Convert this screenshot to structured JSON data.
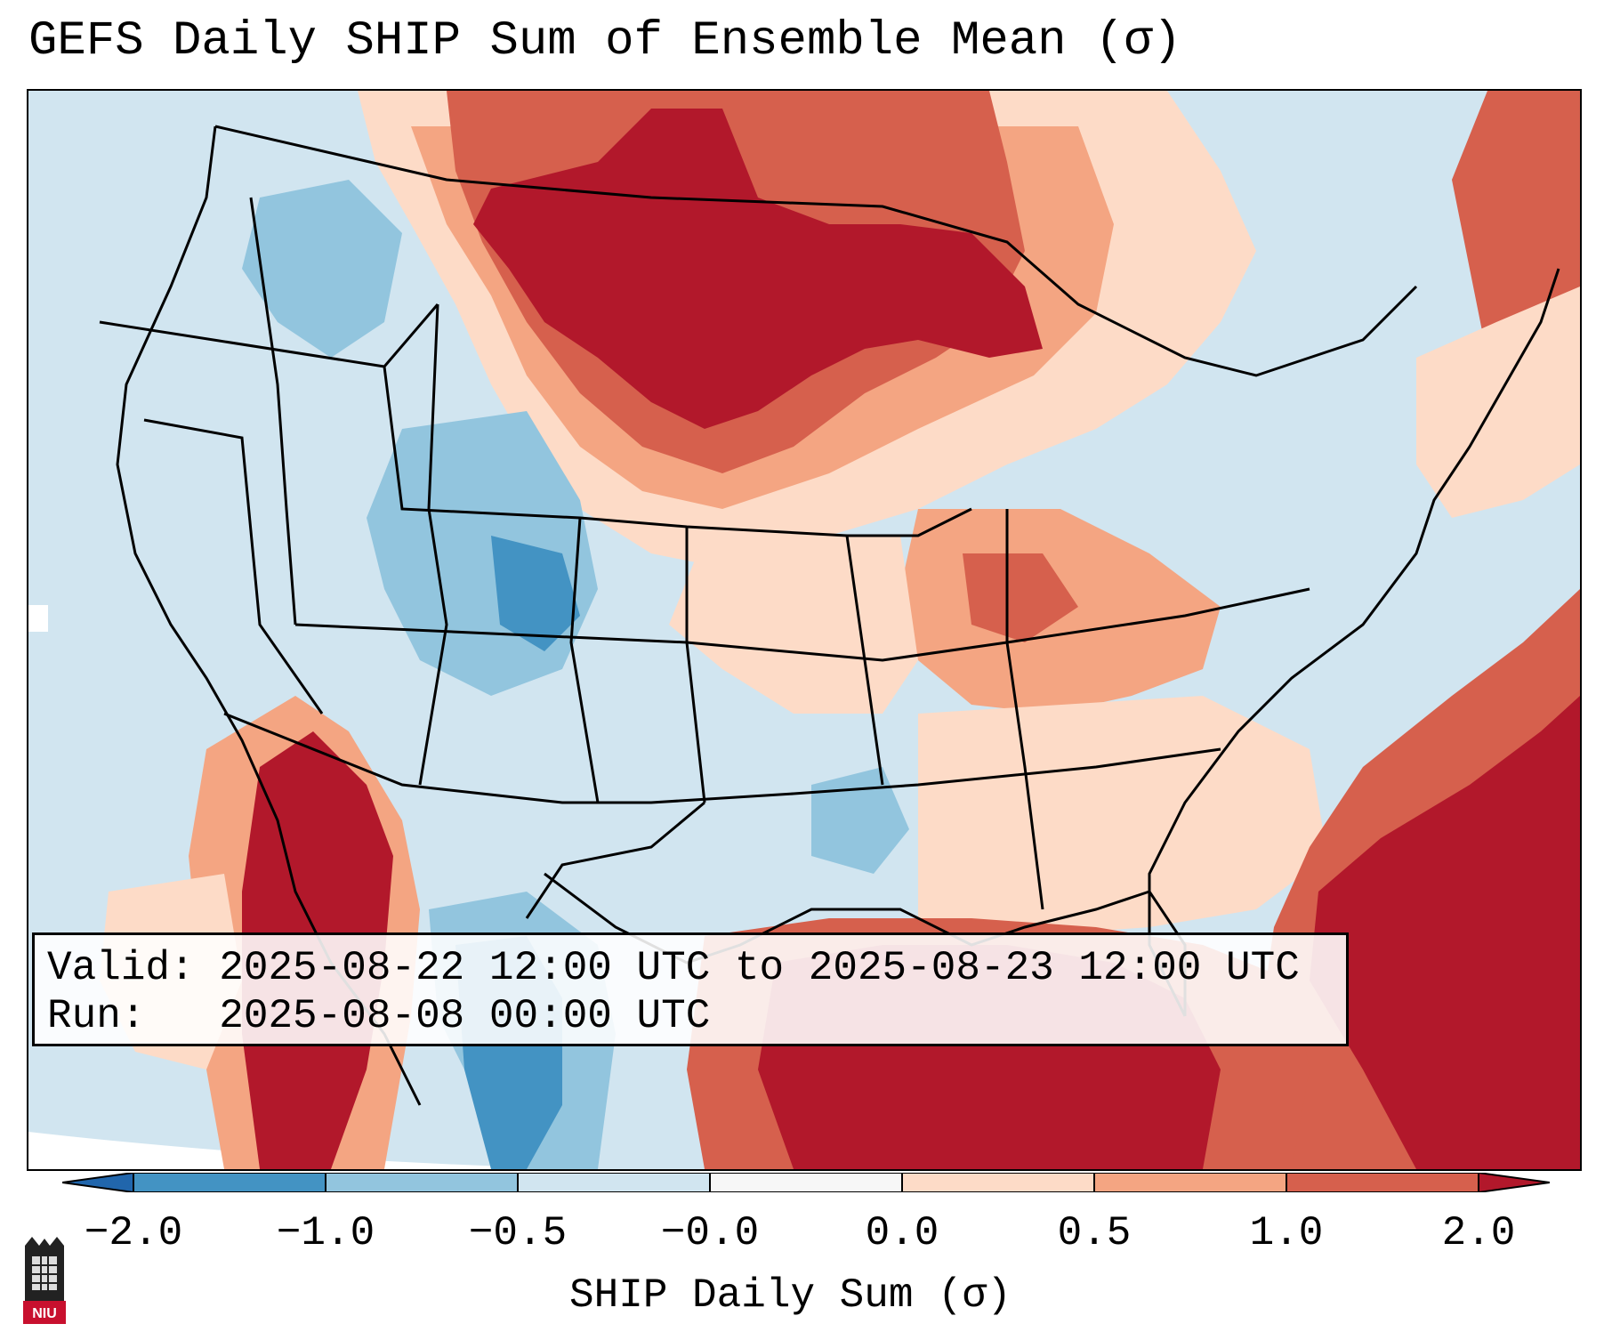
{
  "title": "GEFS Daily SHIP Sum of Ensemble Mean (σ)",
  "info": {
    "valid_line": "Valid: 2025-08-22 12:00 UTC to 2025-08-23 12:00 UTC",
    "run_line": "Run:   2025-08-08 00:00 UTC"
  },
  "colorbar": {
    "label": "SHIP Daily Sum (σ)",
    "ticks": [
      "−2.0",
      "−1.0",
      "−0.5",
      "−0.0",
      "0.0",
      "0.5",
      "1.0",
      "2.0"
    ],
    "bins": [
      {
        "range": "< -2.0",
        "color": "#2166ac"
      },
      {
        "range": "-2.0 to -1.0",
        "color": "#4393c3"
      },
      {
        "range": "-1.0 to -0.5",
        "color": "#92c5de"
      },
      {
        "range": "-0.5 to -0.0",
        "color": "#d1e5f0"
      },
      {
        "range": "-0.0 to 0.0",
        "color": "#f7f7f7"
      },
      {
        "range": "0.0 to 0.5",
        "color": "#fddbc7"
      },
      {
        "range": "0.5 to 1.0",
        "color": "#f4a582"
      },
      {
        "range": "1.0 to 2.0",
        "color": "#d6604d"
      },
      {
        "range": "> 2.0",
        "color": "#b2182b"
      }
    ]
  },
  "logo": {
    "text": "NIU",
    "color": "#c8102e"
  }
}
